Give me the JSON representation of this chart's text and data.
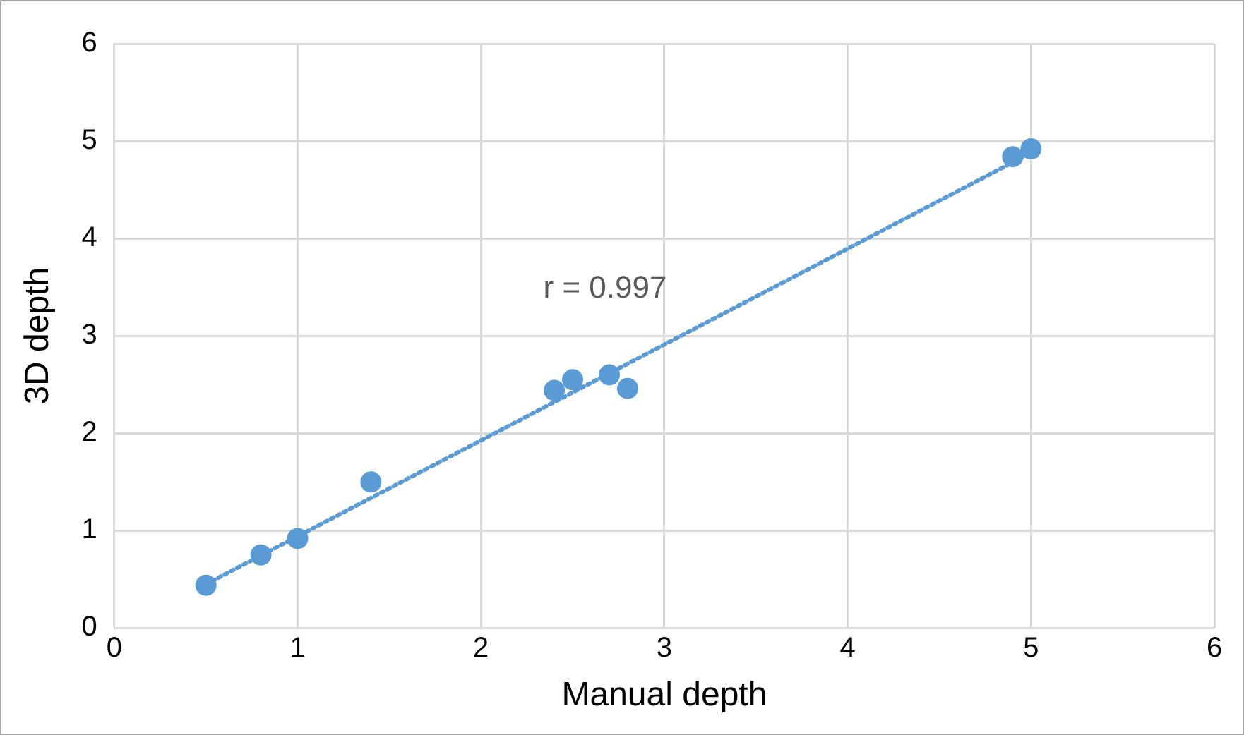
{
  "chart_data": {
    "type": "scatter",
    "xlabel": "Manual depth",
    "ylabel": "3D depth",
    "xlim": [
      0,
      6
    ],
    "ylim": [
      0,
      6
    ],
    "xticks": [
      0,
      1,
      2,
      3,
      4,
      5,
      6
    ],
    "yticks": [
      0,
      1,
      2,
      3,
      4,
      5,
      6
    ],
    "grid": true,
    "marker": "circle",
    "annotations": [
      "r = 0.997"
    ],
    "series": [
      {
        "type": "scatter",
        "color": "#5b9bd5",
        "x": [
          0.5,
          0.8,
          1.0,
          1.4,
          2.4,
          2.5,
          2.7,
          2.8,
          4.9,
          5.0
        ],
        "values": [
          0.44,
          0.75,
          0.92,
          1.5,
          2.44,
          2.55,
          2.6,
          2.46,
          4.84,
          4.92
        ]
      },
      {
        "type": "line",
        "color": "#5b9bd5",
        "line_style": "dotted",
        "marker": "none",
        "x": [
          0.5,
          5.0
        ],
        "values": [
          0.45,
          4.88
        ]
      }
    ]
  }
}
